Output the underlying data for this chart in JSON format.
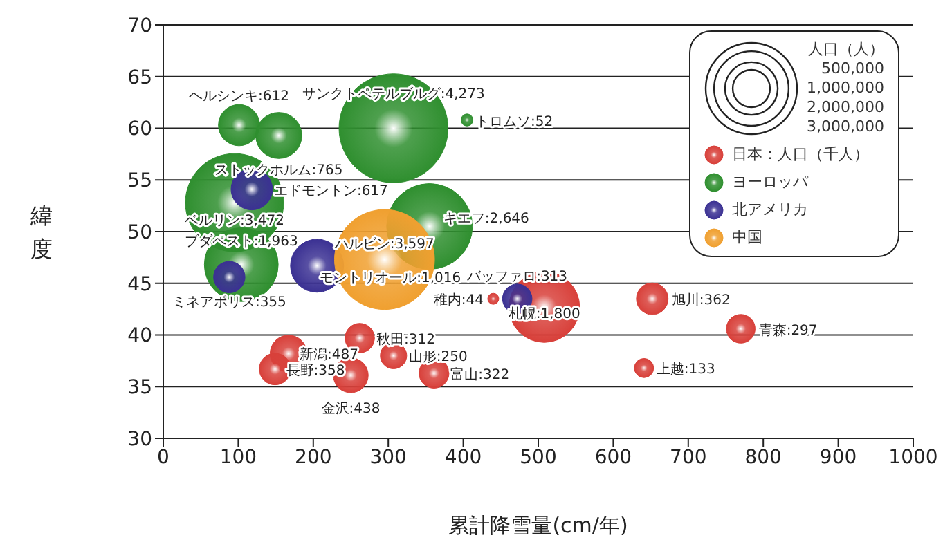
{
  "chart_data": {
    "type": "bubble",
    "xlabel": "累計降雪量(cm/年)",
    "ylabel": "緯度",
    "legend_title": "人口（人）",
    "xlim": [
      0,
      1000
    ],
    "xticks": [
      0,
      100,
      200,
      300,
      400,
      500,
      600,
      700,
      800,
      900,
      1000
    ],
    "ylim": [
      30,
      70
    ],
    "yticks": [
      30,
      35,
      40,
      45,
      50,
      55,
      60,
      65,
      70
    ],
    "grid": "y",
    "legend": "top right",
    "size_legend": [
      {
        "value": 500000,
        "label": "500,000"
      },
      {
        "value": 1000000,
        "label": "1,000,000"
      },
      {
        "value": 2000000,
        "label": "2,000,000"
      },
      {
        "value": 3000000,
        "label": "3,000,000"
      }
    ],
    "series": [
      {
        "name": "日本：人口（千人）",
        "color": "#d8403a",
        "x": [
          167,
          149,
          250,
          262,
          307,
          361,
          508,
          440,
          652,
          770,
          641
        ],
        "values": [
          38.2,
          36.7,
          36.1,
          39.7,
          38.0,
          36.3,
          42.7,
          43.5,
          43.5,
          40.6,
          36.8
        ],
        "sizes": [
          487000,
          358000,
          438000,
          312000,
          250000,
          322000,
          1800000,
          44000,
          362000,
          297000,
          133000
        ]
      },
      {
        "name": "ヨーロッパ",
        "color": "#2f8f2f",
        "x": [
          307,
          405,
          101,
          154,
          95,
          104,
          355
        ],
        "values": [
          60.0,
          60.8,
          60.3,
          59.3,
          52.8,
          46.8,
          50.5
        ],
        "sizes": [
          4273000,
          52000,
          612000,
          765000,
          3472000,
          1963000,
          2646000
        ]
      },
      {
        "name": "北アメリカ",
        "color": "#3b3193",
        "x": [
          118,
          88,
          205,
          472
        ],
        "values": [
          54.1,
          45.6,
          46.7,
          43.5
        ],
        "sizes": [
          617000,
          355000,
          1016000,
          313000
        ]
      },
      {
        "name": "中国",
        "color": "#f0a030",
        "x": [
          295
        ],
        "values": [
          47.3
        ],
        "sizes": [
          3597000
        ]
      }
    ],
    "annotations": [
      {
        "text": "新潟:487",
        "x": 167,
        "y": 38.2
      },
      {
        "text": "長野:358",
        "x": 149,
        "y": 36.7
      },
      {
        "text": "金沢:438",
        "x": 250,
        "y": 36.1
      },
      {
        "text": "秋田:312",
        "x": 262,
        "y": 39.7
      },
      {
        "text": "山形:250",
        "x": 307,
        "y": 38.0
      },
      {
        "text": "富山:322",
        "x": 361,
        "y": 36.3
      },
      {
        "text": "札幌:1,800",
        "x": 508,
        "y": 42.7
      },
      {
        "text": "稚内:44",
        "x": 440,
        "y": 43.5
      },
      {
        "text": "旭川:362",
        "x": 652,
        "y": 43.5
      },
      {
        "text": "青森:297",
        "x": 770,
        "y": 40.6
      },
      {
        "text": "上越:133",
        "x": 641,
        "y": 36.8
      },
      {
        "text": "サンクトペテルブルグ:4,273",
        "x": 307,
        "y": 60.0
      },
      {
        "text": "トロムソ:52",
        "x": 405,
        "y": 60.8
      },
      {
        "text": "ヘルシンキ:612",
        "x": 101,
        "y": 60.3
      },
      {
        "text": "ストックホルム:765",
        "x": 154,
        "y": 59.3
      },
      {
        "text": "ベルリン:3,472",
        "x": 95,
        "y": 52.8
      },
      {
        "text": "ブダペスト:1,963",
        "x": 104,
        "y": 46.8
      },
      {
        "text": "キエフ:2,646",
        "x": 355,
        "y": 50.5
      },
      {
        "text": "エドモントン:617",
        "x": 118,
        "y": 54.1
      },
      {
        "text": "ミネアポリス:355",
        "x": 88,
        "y": 45.6
      },
      {
        "text": "モントリオール:1,016",
        "x": 205,
        "y": 46.7
      },
      {
        "text": "バッファロ:313",
        "x": 472,
        "y": 43.5
      },
      {
        "text": "ハルビン:3,597",
        "x": 295,
        "y": 47.3
      }
    ]
  }
}
